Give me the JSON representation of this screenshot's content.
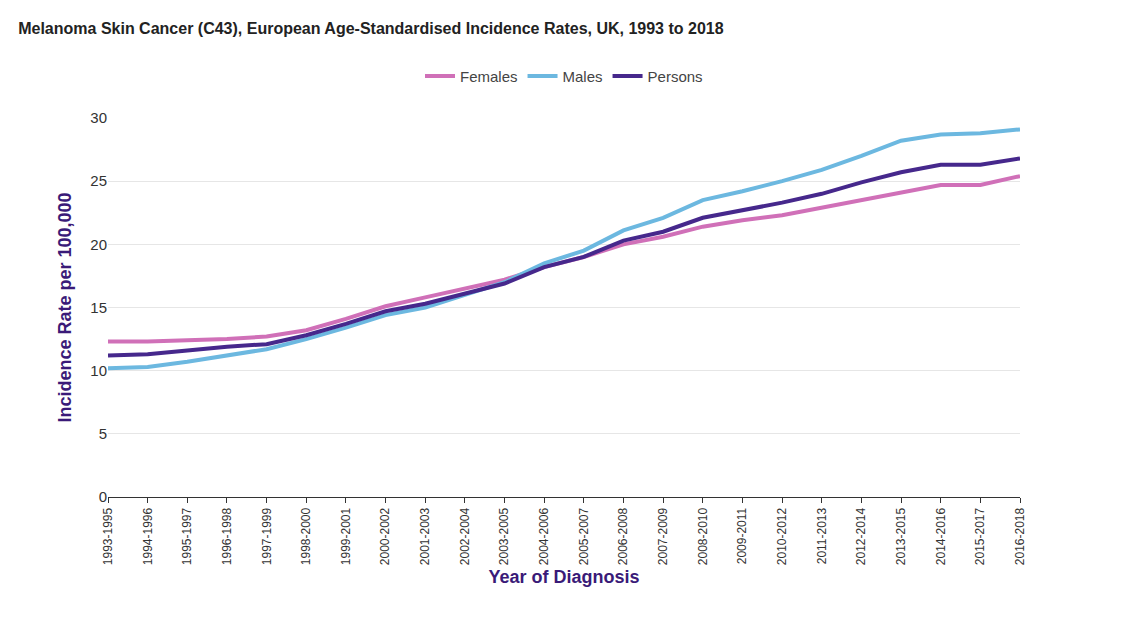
{
  "chart_data": {
    "type": "line",
    "title": "Melanoma Skin Cancer (C43), European Age-Standardised Incidence Rates, UK, 1993 to 2018",
    "x_label": "Year of Diagnosis",
    "y_label": "Incidence Rate per 100,000",
    "categories": [
      "1993-1995",
      "1994-1996",
      "1995-1997",
      "1996-1998",
      "1997-1999",
      "1998-2000",
      "1999-2001",
      "2000-2002",
      "2001-2003",
      "2002-2004",
      "2003-2005",
      "2004-2006",
      "2005-2007",
      "2006-2008",
      "2007-2009",
      "2008-2010",
      "2009-2011",
      "2010-2012",
      "2011-2013",
      "2012-2014",
      "2013-2015",
      "2014-2016",
      "2015-2017",
      "2016-2018"
    ],
    "series": [
      {
        "name": "Females",
        "color": "#d070b8",
        "values": [
          12.3,
          12.3,
          12.4,
          12.5,
          12.7,
          13.2,
          14.1,
          15.1,
          15.8,
          16.5,
          17.2,
          18.2,
          19.0,
          20.0,
          20.6,
          21.4,
          21.9,
          22.3,
          22.9,
          23.5,
          24.1,
          24.7,
          24.7,
          25.4
        ]
      },
      {
        "name": "Males",
        "color": "#6cb8e0",
        "values": [
          10.2,
          10.3,
          10.7,
          11.2,
          11.7,
          12.5,
          13.4,
          14.4,
          15.0,
          16.0,
          17.0,
          18.5,
          19.5,
          21.1,
          22.1,
          23.5,
          24.2,
          25.0,
          25.9,
          27.0,
          28.2,
          28.7,
          28.8,
          29.1
        ]
      },
      {
        "name": "Persons",
        "color": "#46288c",
        "values": [
          11.2,
          11.3,
          11.6,
          11.9,
          12.1,
          12.8,
          13.7,
          14.7,
          15.3,
          16.1,
          16.9,
          18.2,
          19.0,
          20.3,
          21.0,
          22.1,
          22.7,
          23.3,
          24.0,
          24.9,
          25.7,
          26.3,
          26.3,
          26.8
        ]
      }
    ],
    "ylim": [
      0,
      30
    ],
    "yticks": [
      0,
      5,
      10,
      15,
      20,
      25,
      30
    ],
    "grid": true,
    "legend": "top"
  }
}
